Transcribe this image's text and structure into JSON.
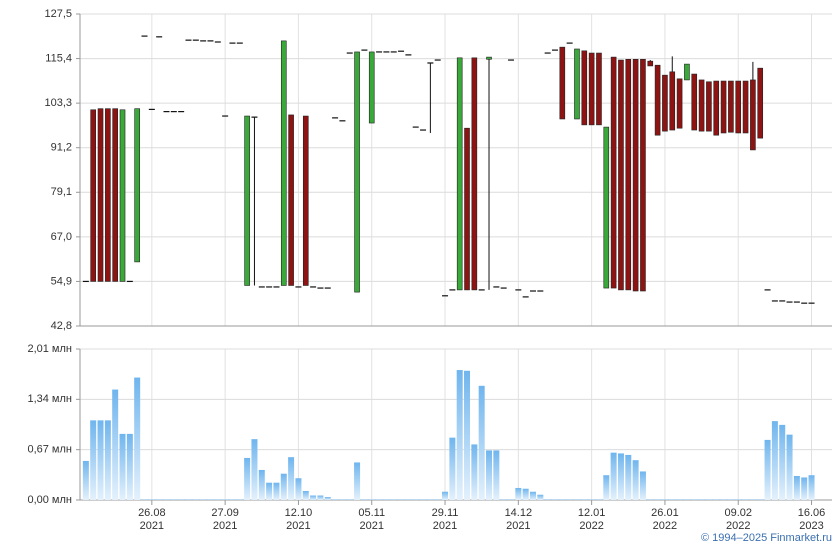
{
  "chart_data": [
    {
      "type": "candlestick",
      "ylim": [
        42.8,
        127.5
      ],
      "yticks": [
        {
          "value": 42.8,
          "label": "42,8"
        },
        {
          "value": 54.9,
          "label": "54,9"
        },
        {
          "value": 67,
          "label": "67,0"
        },
        {
          "value": 79.1,
          "label": "79,1"
        },
        {
          "value": 91.2,
          "label": "91,2"
        },
        {
          "value": 103.3,
          "label": "103,3"
        },
        {
          "value": 115.4,
          "label": "115,4"
        },
        {
          "value": 127.5,
          "label": "127,5"
        }
      ],
      "grid": true,
      "up_color": "#3aa83a",
      "down_color": "#8e1414",
      "open": [
        54.9,
        101.5,
        101.8,
        101.8,
        101.8,
        54.9,
        54.9,
        60.2,
        121.5,
        101.6,
        121.3,
        101.0,
        101.0,
        101.0,
        120.4,
        120.4,
        120.2,
        120.2,
        119.9,
        99.8,
        119.6,
        119.6,
        53.8,
        99.5,
        53.4,
        53.4,
        53.4,
        53.8,
        100.1,
        53.4,
        99.8,
        53.4,
        53.1,
        53.1,
        99.3,
        98.5,
        116.9,
        52.0,
        117.7,
        97.9,
        117.2,
        117.2,
        117.2,
        117.4,
        116.4,
        96.8,
        96.0,
        114.2,
        115.0,
        51.0,
        52.6,
        52.6,
        96.5,
        115.6,
        52.6,
        115.2,
        53.4,
        53.1,
        115.0,
        52.6,
        50.7,
        52.3,
        52.3,
        116.9,
        117.7,
        118.5,
        119.6,
        99.0,
        117.5,
        116.9,
        116.9,
        53.1,
        115.8,
        115.0,
        115.2,
        115.2,
        115.2,
        114.7,
        113.6,
        110.9,
        111.8,
        109.9,
        109.6,
        111.2,
        109.6,
        109.1,
        109.3,
        109.3,
        109.3,
        109.3,
        109.3,
        109.6,
        112.8,
        52.6,
        49.6,
        49.6,
        49.3,
        49.3,
        49.0,
        49.0
      ],
      "high": [
        54.9,
        101.5,
        101.8,
        101.8,
        101.8,
        101.5,
        54.9,
        101.8,
        121.5,
        101.6,
        121.3,
        101.0,
        101.0,
        101.0,
        120.4,
        120.4,
        120.2,
        120.2,
        119.9,
        99.8,
        119.6,
        119.6,
        99.8,
        99.5,
        53.4,
        53.4,
        53.4,
        120.2,
        100.1,
        53.4,
        99.8,
        53.4,
        53.1,
        53.1,
        99.3,
        98.5,
        116.9,
        117.2,
        117.7,
        117.2,
        117.2,
        117.2,
        117.2,
        117.4,
        116.4,
        96.8,
        96.0,
        114.2,
        115.0,
        51.0,
        52.6,
        115.6,
        96.5,
        115.6,
        52.6,
        115.8,
        53.4,
        53.1,
        115.0,
        52.6,
        50.7,
        52.3,
        52.3,
        116.9,
        117.7,
        118.5,
        119.6,
        118.0,
        117.5,
        116.9,
        116.9,
        96.8,
        115.8,
        115.0,
        115.2,
        115.2,
        115.2,
        115.0,
        113.6,
        110.9,
        116.0,
        109.9,
        113.9,
        111.2,
        109.6,
        109.1,
        109.3,
        109.3,
        109.3,
        109.3,
        109.3,
        114.5,
        112.8,
        52.6,
        49.6,
        49.6,
        49.3,
        49.3,
        49.0,
        49.0
      ],
      "low": [
        54.9,
        54.9,
        54.9,
        54.9,
        54.9,
        54.9,
        54.9,
        60.2,
        121.5,
        101.6,
        121.3,
        101.0,
        101.0,
        101.0,
        120.4,
        120.4,
        120.2,
        120.2,
        119.9,
        99.8,
        119.6,
        119.6,
        53.8,
        53.8,
        53.4,
        53.4,
        53.4,
        53.8,
        53.8,
        53.4,
        53.8,
        53.4,
        53.1,
        53.1,
        99.3,
        98.5,
        116.9,
        52.0,
        117.7,
        97.9,
        117.2,
        117.2,
        117.2,
        117.4,
        116.4,
        96.8,
        96.0,
        95.2,
        115.0,
        51.0,
        52.6,
        52.6,
        52.6,
        52.6,
        52.6,
        52.6,
        53.4,
        53.1,
        115.0,
        52.6,
        50.7,
        52.3,
        52.3,
        116.9,
        117.7,
        99.0,
        119.6,
        99.0,
        97.4,
        97.4,
        97.4,
        53.1,
        53.1,
        52.6,
        52.6,
        52.3,
        52.3,
        113.4,
        94.6,
        95.7,
        96.0,
        96.5,
        109.6,
        96.0,
        95.7,
        95.7,
        94.6,
        95.2,
        95.4,
        95.2,
        95.2,
        90.6,
        93.8,
        52.6,
        49.6,
        49.6,
        49.3,
        49.3,
        49.0,
        49.0
      ],
      "close": [
        54.9,
        54.9,
        54.9,
        54.9,
        54.9,
        101.5,
        54.9,
        101.8,
        121.5,
        101.6,
        121.3,
        101.0,
        101.0,
        101.0,
        120.4,
        120.4,
        120.2,
        120.2,
        119.9,
        99.8,
        119.6,
        119.6,
        99.8,
        99.5,
        53.4,
        53.4,
        53.4,
        120.2,
        53.8,
        53.4,
        53.8,
        53.4,
        53.1,
        53.1,
        99.3,
        98.5,
        116.9,
        117.2,
        117.7,
        117.2,
        117.2,
        117.2,
        117.2,
        117.4,
        116.4,
        96.8,
        96.0,
        114.2,
        115.0,
        51.0,
        52.6,
        115.6,
        52.6,
        52.6,
        52.6,
        115.8,
        53.4,
        53.1,
        115.0,
        52.6,
        50.7,
        52.3,
        52.3,
        116.9,
        117.7,
        99.0,
        119.6,
        118.0,
        97.4,
        97.4,
        97.4,
        96.8,
        53.1,
        52.6,
        52.6,
        52.3,
        52.3,
        113.4,
        94.6,
        95.7,
        96.0,
        96.5,
        113.9,
        96.0,
        95.7,
        95.7,
        94.6,
        95.2,
        95.4,
        95.2,
        95.2,
        90.6,
        93.8,
        52.6,
        49.6,
        49.6,
        49.3,
        49.3,
        49.0,
        49.0
      ]
    },
    {
      "type": "bar",
      "ylim": [
        0,
        2.01
      ],
      "yticks": [
        {
          "value": 0,
          "label": "0,00 млн"
        },
        {
          "value": 0.67,
          "label": "0,67 млн"
        },
        {
          "value": 1.34,
          "label": "1,34 млн"
        },
        {
          "value": 2.01,
          "label": "2,01 млн"
        }
      ],
      "grid": true,
      "color": "#7dbdf0",
      "categories": [
        null,
        null,
        null,
        null,
        null,
        null,
        null,
        null,
        null,
        "26.08 2021",
        null,
        null,
        null,
        null,
        null,
        null,
        null,
        null,
        null,
        "27.09 2021",
        null,
        null,
        null,
        null,
        null,
        null,
        null,
        null,
        null,
        "12.10 2021",
        null,
        null,
        null,
        null,
        null,
        null,
        null,
        null,
        null,
        "05.11 2021",
        null,
        null,
        null,
        null,
        null,
        null,
        null,
        null,
        null,
        "29.11 2021",
        null,
        null,
        null,
        null,
        null,
        null,
        null,
        null,
        null,
        "14.12 2021",
        null,
        null,
        null,
        null,
        null,
        null,
        null,
        null,
        null,
        "12.01 2022",
        null,
        null,
        null,
        null,
        null,
        null,
        null,
        null,
        null,
        "26.01 2022",
        null,
        null,
        null,
        null,
        null,
        null,
        null,
        null,
        null,
        "09.02 2022",
        null,
        null,
        null,
        null,
        null,
        null,
        null,
        null,
        null,
        "16.06 2023"
      ],
      "values": [
        0.52,
        1.06,
        1.06,
        1.06,
        1.47,
        0.88,
        0.88,
        1.63,
        0.01,
        0.01,
        0.01,
        0.01,
        0.01,
        0.01,
        0.01,
        0.01,
        0.01,
        0.01,
        0.01,
        0.01,
        0.01,
        0.01,
        0.56,
        0.81,
        0.4,
        0.23,
        0.23,
        0.35,
        0.57,
        0.29,
        0.12,
        0.06,
        0.06,
        0.04,
        0.01,
        0.01,
        0.01,
        0.5,
        0.01,
        0.01,
        0.01,
        0.01,
        0.01,
        0.01,
        0.01,
        0.01,
        0.01,
        0.01,
        0.01,
        0.11,
        0.83,
        1.73,
        1.72,
        0.74,
        1.52,
        0.66,
        0.66,
        0.01,
        0.01,
        0.16,
        0.15,
        0.11,
        0.07,
        0.01,
        0.01,
        0.01,
        0.01,
        0.01,
        0.01,
        0.01,
        0.01,
        0.33,
        0.63,
        0.62,
        0.6,
        0.53,
        0.38,
        0.01,
        0.01,
        0.01,
        0.01,
        0.01,
        0.01,
        0.01,
        0.01,
        0.01,
        0.01,
        0.01,
        0.01,
        0.01,
        0.01,
        0.01,
        0.01,
        0.8,
        1.05,
        1.0,
        0.87,
        0.32,
        0.3,
        0.33
      ]
    }
  ],
  "copyright": "© 1994–2025 Finmarket.ru"
}
